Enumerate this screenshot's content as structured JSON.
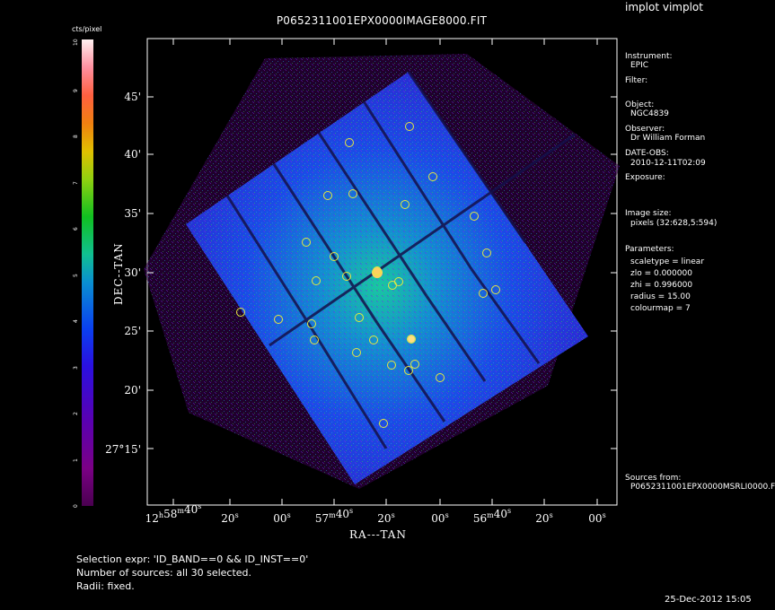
{
  "app_title": "implot vimplot",
  "image_title": "P0652311001EPX0000IMAGE8000.FIT",
  "colorbar": {
    "label": "cts/pixel",
    "ticks": [
      "0",
      "1",
      "2",
      "3",
      "4",
      "5",
      "6",
      "7",
      "8",
      "9",
      "10"
    ]
  },
  "axes": {
    "x_label": "RA---TAN",
    "y_label": "DEC--TAN",
    "x_ticks": [
      {
        "h": "12",
        "hs": "h",
        "m": "58",
        "ms": "m",
        "s": "40",
        "ss": "s"
      },
      {
        "s": "20",
        "ss": "s"
      },
      {
        "s": "00",
        "ss": "s"
      },
      {
        "m": "57",
        "ms": "m",
        "s": "40",
        "ss": "s"
      },
      {
        "s": "20",
        "ss": "s"
      },
      {
        "s": "00",
        "ss": "s"
      },
      {
        "m": "56",
        "ms": "m",
        "s": "40",
        "ss": "s"
      },
      {
        "s": "20",
        "ss": "s"
      },
      {
        "s": "00",
        "ss": "s"
      }
    ],
    "y_ticks": [
      "45'",
      "40'",
      "35'",
      "30'",
      "25'",
      "20'",
      "27°15'"
    ]
  },
  "info": {
    "instrument_label": "Instrument:",
    "instrument_value": "EPIC",
    "filter_label": "Filter:",
    "object_label": "Object:",
    "object_value": "NGC4839",
    "observer_label": "Observer:",
    "observer_value": "Dr William Forman",
    "date_obs_label": "DATE-OBS:",
    "date_obs_value": "2010-12-11T02:09",
    "exposure_label": "Exposure:",
    "image_size_label": "Image size:",
    "image_size_value": "pixels (32:628,5:594)",
    "parameters_label": "Parameters:",
    "param_scaletype": "scaletype = linear",
    "param_zlo": "zlo = 0.000000",
    "param_zhi": "zhi = 0.996000",
    "param_radius": "radius = 15.00",
    "param_colourmap": "colourmap = 7",
    "sources_label": "Sources from:",
    "sources_value": "P0652311001EPX0000MSRLI0000.F"
  },
  "footer": {
    "selection": "Selection expr: 'ID_BAND==0 && ID_INST==0'",
    "num_sources": "Number of sources: all 30 selected.",
    "radii": "Radii: fixed."
  },
  "timestamp": "25-Dec-2012 15:05"
}
